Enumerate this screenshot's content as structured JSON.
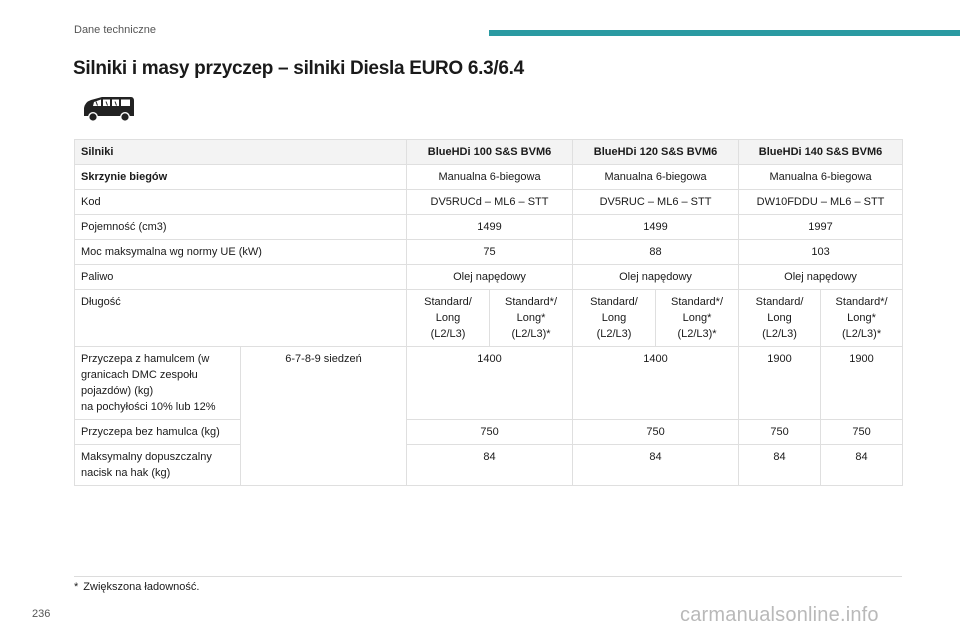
{
  "header": {
    "section": "Dane techniczne",
    "accent_color": "#2a9aa2"
  },
  "title": "Silniki i masy przyczep – silniki Diesla EURO 6.3/6.4",
  "vehicle_icon": "van-icon",
  "table": {
    "row_engines": {
      "label": "Silniki",
      "values": [
        "BlueHDi 100 S&S BVM6",
        "BlueHDi 120 S&S BVM6",
        "BlueHDi 140 S&S BVM6"
      ]
    },
    "row_gearbox": {
      "label": "Skrzynie biegów",
      "values": [
        "Manualna 6-biegowa",
        "Manualna 6-biegowa",
        "Manualna 6-biegowa"
      ]
    },
    "row_code": {
      "label": "Kod",
      "values": [
        "DV5RUCd – ML6 – STT",
        "DV5RUC – ML6 – STT",
        "DW10FDDU – ML6 – STT"
      ]
    },
    "row_capacity": {
      "label": "Pojemność (cm3)",
      "values": [
        "1499",
        "1499",
        "1997"
      ]
    },
    "row_power": {
      "label": "Moc maksymalna wg normy UE (kW)",
      "values": [
        "75",
        "88",
        "103"
      ]
    },
    "row_fuel": {
      "label": "Paliwo",
      "values": [
        "Olej napędowy",
        "Olej napędowy",
        "Olej napędowy"
      ]
    },
    "row_length": {
      "label": "Długość",
      "values": [
        "Standard/\nLong\n(L2/L3)",
        "Standard*/\nLong*\n(L2/L3)*",
        "Standard/\nLong\n(L2/L3)",
        "Standard*/\nLong*\n(L2/L3)*",
        "Standard/\nLong\n(L2/L3)",
        "Standard*/\nLong*\n(L2/L3)*"
      ]
    },
    "seats_label": "6-7-8-9 siedzeń",
    "row_braked": {
      "label": "Przyczepa z hamulcem (w\ngranicach DMC zespołu\npojazdów) (kg)\nna pochyłości 10% lub 12%",
      "values": [
        "1400",
        "1400",
        "1900",
        "1900"
      ]
    },
    "row_unbraked": {
      "label": "Przyczepa bez hamulca (kg)",
      "values": [
        "750",
        "750",
        "750",
        "750"
      ]
    },
    "row_hitch": {
      "label": "Maksymalny dopuszczalny\nnacisk na hak (kg)",
      "values": [
        "84",
        "84",
        "84",
        "84"
      ]
    }
  },
  "footnote": {
    "marker": "*",
    "text": "Zwiększona ładowność."
  },
  "page_number": "236",
  "watermark": "carmanualsonline.info"
}
